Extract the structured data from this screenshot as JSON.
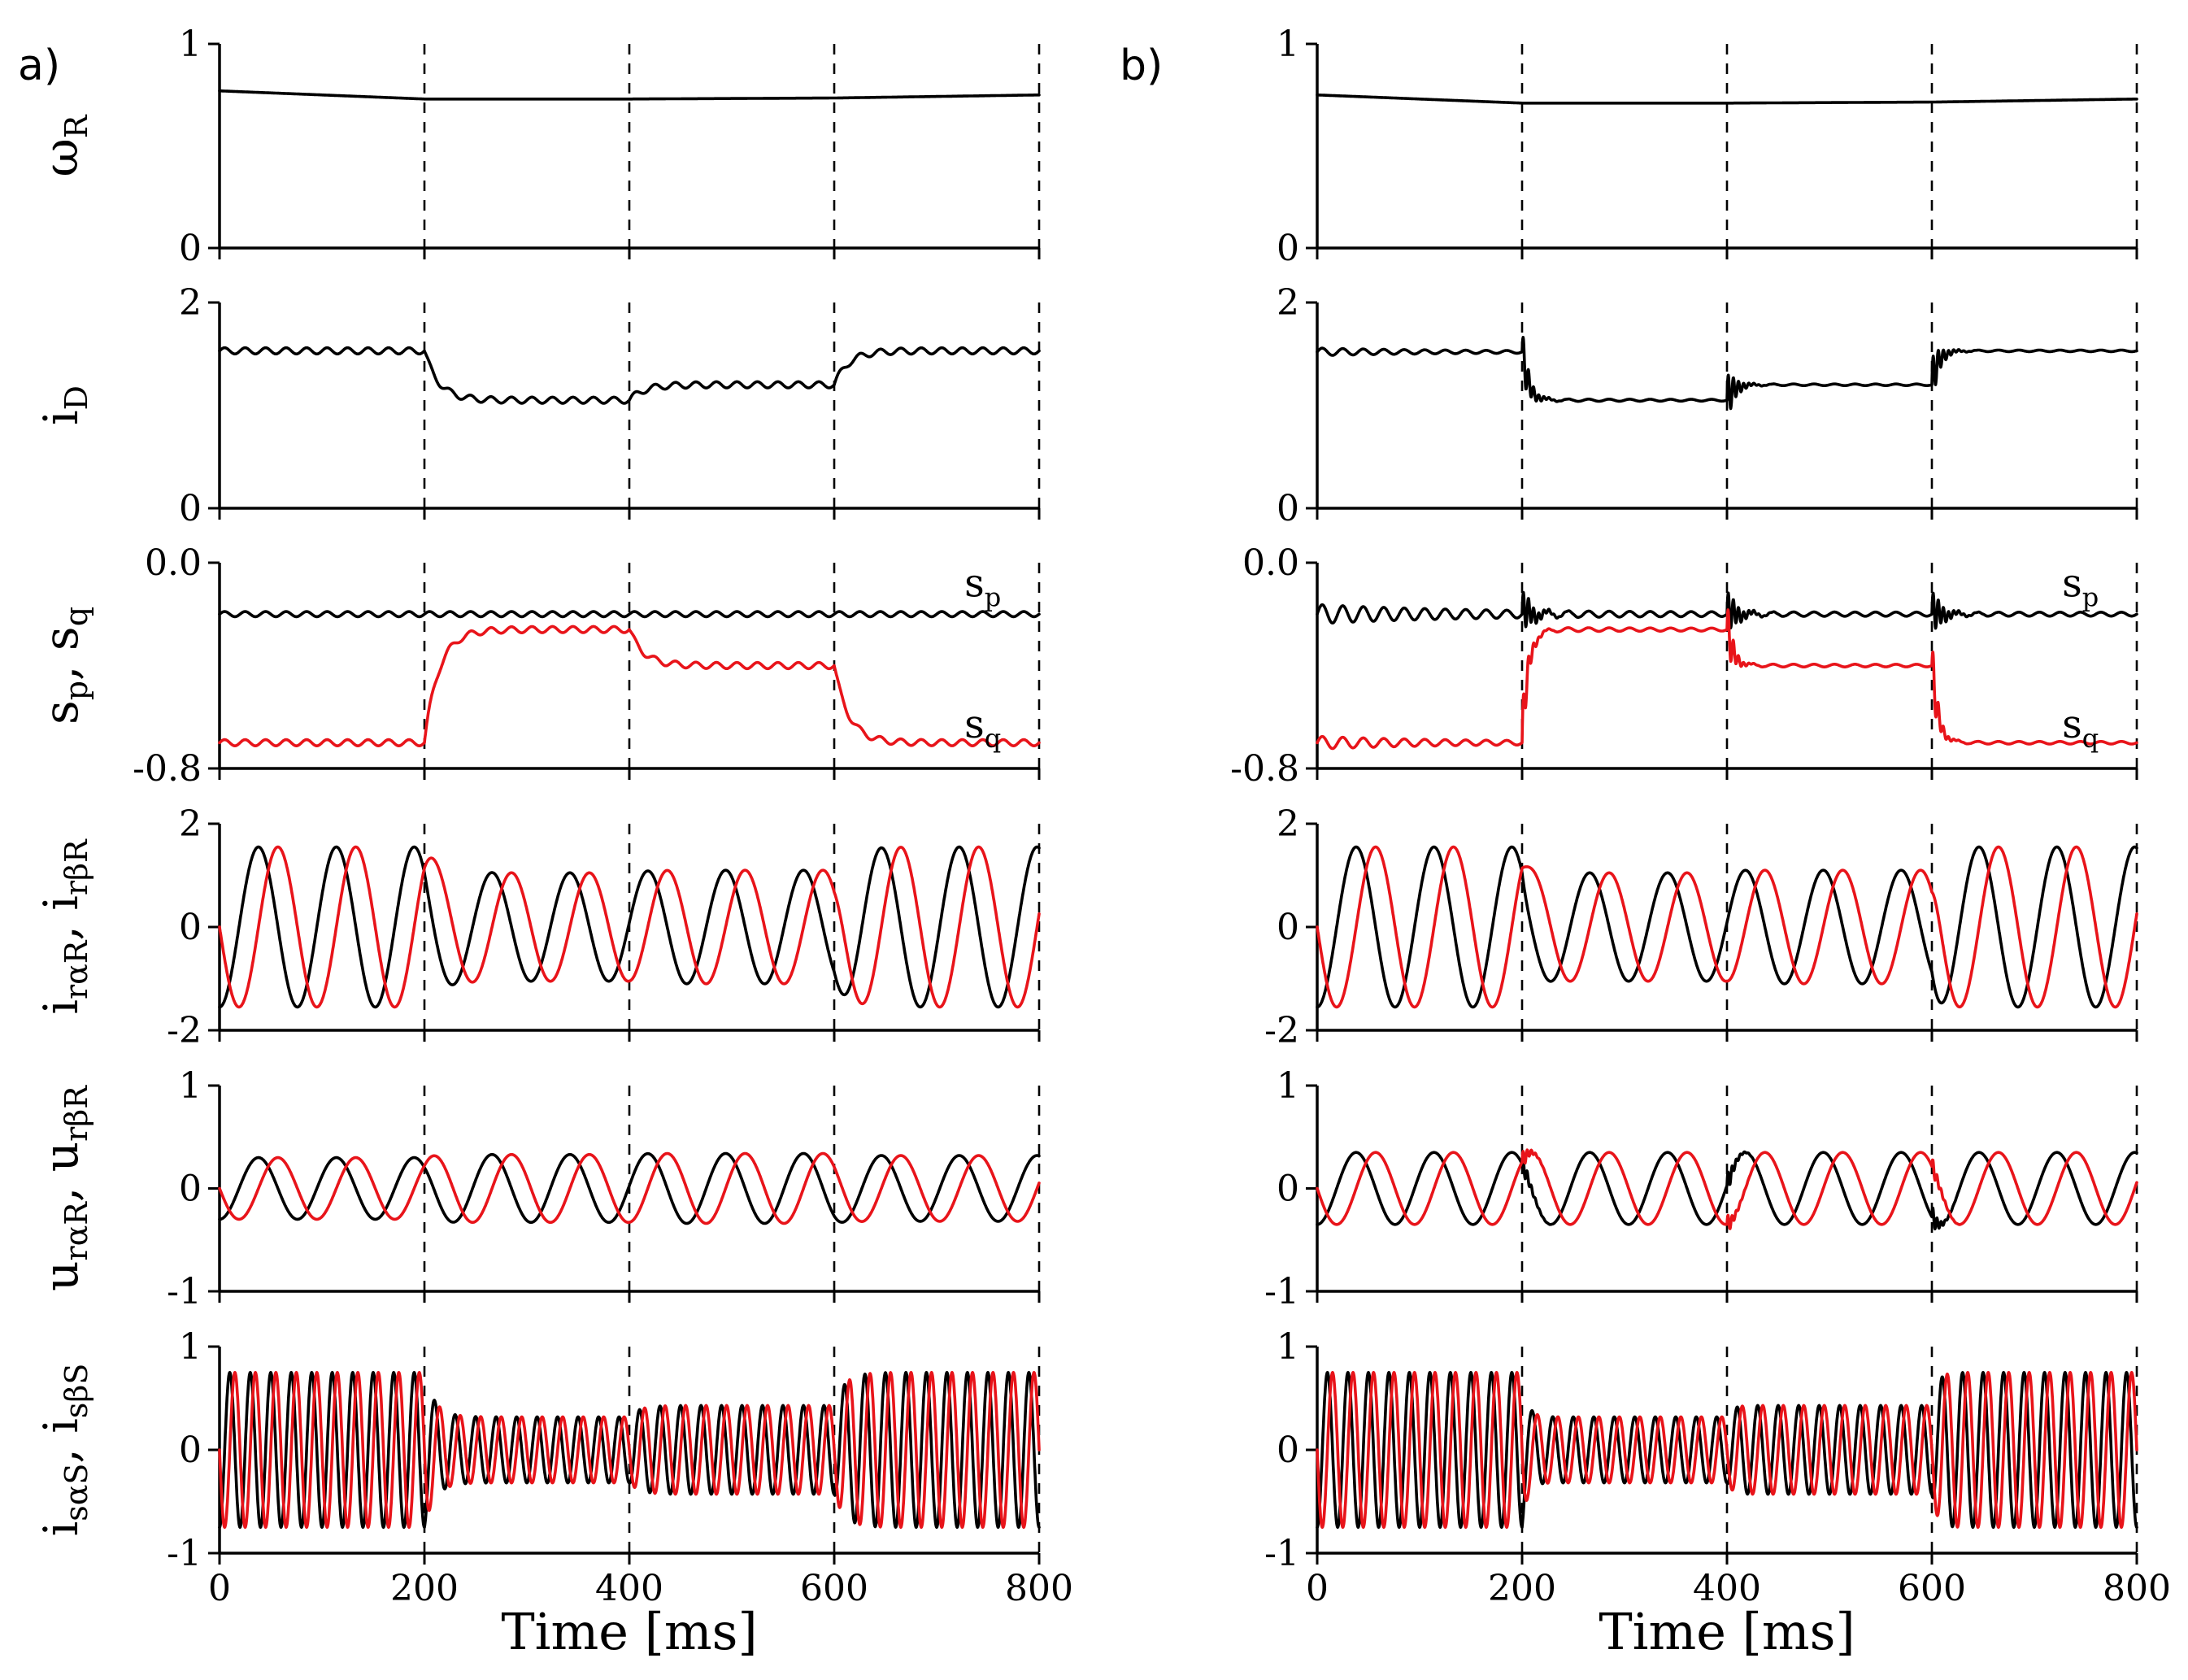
{
  "chart_data": [
    {
      "type": "line",
      "panel": "a)",
      "rows": [
        {
          "ylabel": "ω",
          "ylabel_sub": "R",
          "ylim": [
            0,
            1
          ],
          "yticks": [
            "0",
            "1"
          ],
          "annotations": [],
          "series": [
            {
              "name": "omega_R",
              "color": "#000000",
              "kind": "piecewise",
              "points": [
                [
                  0,
                  0.77
                ],
                [
                  200,
                  0.73
                ],
                [
                  400,
                  0.73
                ],
                [
                  600,
                  0.735
                ],
                [
                  800,
                  0.75
                ]
              ]
            }
          ]
        },
        {
          "ylabel": "i",
          "ylabel_sub": "D",
          "ylim": [
            0,
            2
          ],
          "yticks": [
            "0",
            "2"
          ],
          "annotations": [],
          "series": [
            {
              "name": "i_D",
              "color": "#000000",
              "kind": "level",
              "levels": [
                1.53,
                1.05,
                1.2,
                1.53
              ],
              "tau": 14,
              "ripple": 0.03,
              "period": 20,
              "initStart": 1.53
            }
          ]
        },
        {
          "ylabel": "s",
          "ylabel_sub": "p",
          "ylabel2": ", s",
          "ylabel2_sub": "q",
          "ylim": [
            -0.8,
            0.0
          ],
          "yticks": [
            "-0.8",
            "0.0"
          ],
          "annotations": [
            {
              "text": "s",
              "sub": "p",
              "x": 745,
              "y": -0.08
            },
            {
              "text": "s",
              "sub": "q",
              "x": 745,
              "y": -0.63
            }
          ],
          "series": [
            {
              "name": "s_p",
              "color": "#000000",
              "kind": "level",
              "levels": [
                -0.2,
                -0.2,
                -0.2,
                -0.2
              ],
              "tau": 14,
              "ripple": 0.01,
              "period": 20,
              "initStart": -0.2
            },
            {
              "name": "s_q",
              "color": "#e8141a",
              "kind": "level",
              "levels": [
                -0.7,
                -0.26,
                -0.4,
                -0.7
              ],
              "tau": 14,
              "ripple": 0.012,
              "period": 20,
              "initStart": -0.7
            }
          ]
        },
        {
          "ylabel": "i",
          "ylabel_sub": "rαR",
          "ylabel2": ", i",
          "ylabel2_sub": "rβR",
          "ylim": [
            -2,
            2
          ],
          "yticks": [
            "-2",
            "0",
            "2"
          ],
          "annotations": [],
          "series": [
            {
              "name": "i_ralphaR",
              "color": "#000000",
              "kind": "sine",
              "period": 76,
              "phase": 0.75,
              "amps": [
                1.55,
                1.05,
                1.1,
                1.55
              ],
              "tau": 14
            },
            {
              "name": "i_rbetaR",
              "color": "#e8141a",
              "kind": "sine",
              "period": 76,
              "phase": 0.5,
              "amps": [
                1.55,
                1.05,
                1.1,
                1.55
              ],
              "tau": 14
            }
          ]
        },
        {
          "ylabel": "u",
          "ylabel_sub": "rαR",
          "ylabel2": ", u",
          "ylabel2_sub": "rβR",
          "ylim": [
            -1,
            1
          ],
          "yticks": [
            "-1",
            "0",
            "1"
          ],
          "annotations": [],
          "series": [
            {
              "name": "u_ralphaR",
              "color": "#000000",
              "kind": "sine",
              "period": 76,
              "phase": 0.75,
              "amps": [
                0.3,
                0.33,
                0.34,
                0.32
              ],
              "tau": 10
            },
            {
              "name": "u_rbetaR",
              "color": "#e8141a",
              "kind": "sine",
              "period": 76,
              "phase": 0.5,
              "amps": [
                0.3,
                0.33,
                0.34,
                0.32
              ],
              "tau": 10
            }
          ]
        },
        {
          "ylabel": "i",
          "ylabel_sub": "sαS",
          "ylabel2": ", i",
          "ylabel2_sub": "sβS",
          "ylim": [
            -1,
            1
          ],
          "yticks": [
            "-1",
            "0",
            "1"
          ],
          "annotations": [],
          "series": [
            {
              "name": "i_salphaS",
              "color": "#000000",
              "kind": "sine",
              "period": 20,
              "phase": 0.75,
              "amps": [
                0.75,
                0.32,
                0.43,
                0.75
              ],
              "tau": 10
            },
            {
              "name": "i_sbetaS",
              "color": "#e8141a",
              "kind": "sine",
              "period": 20,
              "phase": 0.5,
              "amps": [
                0.75,
                0.32,
                0.43,
                0.75
              ],
              "tau": 10
            }
          ]
        }
      ],
      "xlim": [
        0,
        800
      ],
      "xticks": [
        "0",
        "200",
        "400",
        "600",
        "800"
      ],
      "vlines": [
        200,
        400,
        600,
        800
      ],
      "xlabel": "Time [ms]"
    },
    {
      "type": "line",
      "panel": "b)",
      "rows": [
        {
          "ylabel": "",
          "ylim": [
            0,
            1
          ],
          "yticks": [
            "0",
            "1"
          ],
          "annotations": [],
          "series": [
            {
              "name": "omega_R",
              "color": "#000000",
              "kind": "piecewise",
              "points": [
                [
                  0,
                  0.75
                ],
                [
                  200,
                  0.71
                ],
                [
                  400,
                  0.71
                ],
                [
                  600,
                  0.715
                ],
                [
                  800,
                  0.73
                ]
              ]
            }
          ]
        },
        {
          "ylabel": "",
          "ylim": [
            0,
            2
          ],
          "yticks": [
            "0",
            "2"
          ],
          "annotations": [],
          "series": [
            {
              "name": "i_D",
              "color": "#000000",
              "kind": "level",
              "levels": [
                1.52,
                1.05,
                1.2,
                1.53
              ],
              "tau": 6,
              "ripple": 0.03,
              "period": 20,
              "initStart": 1.52,
              "spike": 0.25,
              "spikeDecay": 8,
              "rippleDecay": 120
            }
          ]
        },
        {
          "ylabel": "",
          "ylim": [
            -0.8,
            0.0
          ],
          "yticks": [
            "-0.8",
            "0.0"
          ],
          "annotations": [
            {
              "text": "s",
              "sub": "p",
              "x": 745,
              "y": -0.08
            },
            {
              "text": "s",
              "sub": "q",
              "x": 745,
              "y": -0.63
            }
          ],
          "series": [
            {
              "name": "s_p",
              "color": "#000000",
              "kind": "level",
              "levels": [
                -0.2,
                -0.2,
                -0.2,
                -0.2
              ],
              "tau": 6,
              "ripple": 0.03,
              "period": 20,
              "initStart": -0.2,
              "spike": 0.09,
              "spikeDecay": 10,
              "rippleDecay": 140
            },
            {
              "name": "s_q",
              "color": "#e8141a",
              "kind": "level",
              "levels": [
                -0.7,
                -0.26,
                -0.4,
                -0.7
              ],
              "tau": 6,
              "ripple": 0.02,
              "period": 20,
              "initStart": -0.7,
              "spike": 0.12,
              "spikeDecay": 6,
              "rippleDecay": 120
            }
          ]
        },
        {
          "ylabel": "",
          "ylim": [
            -2,
            2
          ],
          "yticks": [
            "-2",
            "0",
            "2"
          ],
          "annotations": [],
          "series": [
            {
              "name": "i_ralphaR",
              "color": "#000000",
              "kind": "sine",
              "period": 76,
              "phase": 0.75,
              "amps": [
                1.55,
                1.05,
                1.1,
                1.55
              ],
              "tau": 5
            },
            {
              "name": "i_rbetaR",
              "color": "#e8141a",
              "kind": "sine",
              "period": 76,
              "phase": 0.5,
              "amps": [
                1.55,
                1.05,
                1.1,
                1.55
              ],
              "tau": 5
            }
          ]
        },
        {
          "ylabel": "",
          "ylim": [
            -1,
            1
          ],
          "yticks": [
            "-1",
            "0",
            "1"
          ],
          "annotations": [],
          "series": [
            {
              "name": "u_ralphaR",
              "color": "#000000",
              "kind": "sine",
              "period": 76,
              "phase": 0.75,
              "amps": [
                0.35,
                0.35,
                0.35,
                0.35
              ],
              "tau": 5,
              "spike": 0.12,
              "spikeDecay": 6
            },
            {
              "name": "u_rbetaR",
              "color": "#e8141a",
              "kind": "sine",
              "period": 76,
              "phase": 0.5,
              "amps": [
                0.35,
                0.35,
                0.35,
                0.35
              ],
              "tau": 5,
              "spike": 0.1,
              "spikeDecay": 6
            }
          ]
        },
        {
          "ylabel": "",
          "ylim": [
            -1,
            1
          ],
          "yticks": [
            "-1",
            "0",
            "1"
          ],
          "annotations": [],
          "series": [
            {
              "name": "i_salphaS",
              "color": "#000000",
              "kind": "sine",
              "period": 20,
              "phase": 0.75,
              "amps": [
                0.75,
                0.32,
                0.43,
                0.75
              ],
              "tau": 5
            },
            {
              "name": "i_sbetaS",
              "color": "#e8141a",
              "kind": "sine",
              "period": 20,
              "phase": 0.5,
              "amps": [
                0.75,
                0.32,
                0.43,
                0.75
              ],
              "tau": 5
            }
          ]
        }
      ],
      "xlim": [
        0,
        800
      ],
      "xticks": [
        "0",
        "200",
        "400",
        "600",
        "800"
      ],
      "vlines": [
        200,
        400,
        600,
        800
      ],
      "xlabel": "Time [ms]"
    }
  ]
}
